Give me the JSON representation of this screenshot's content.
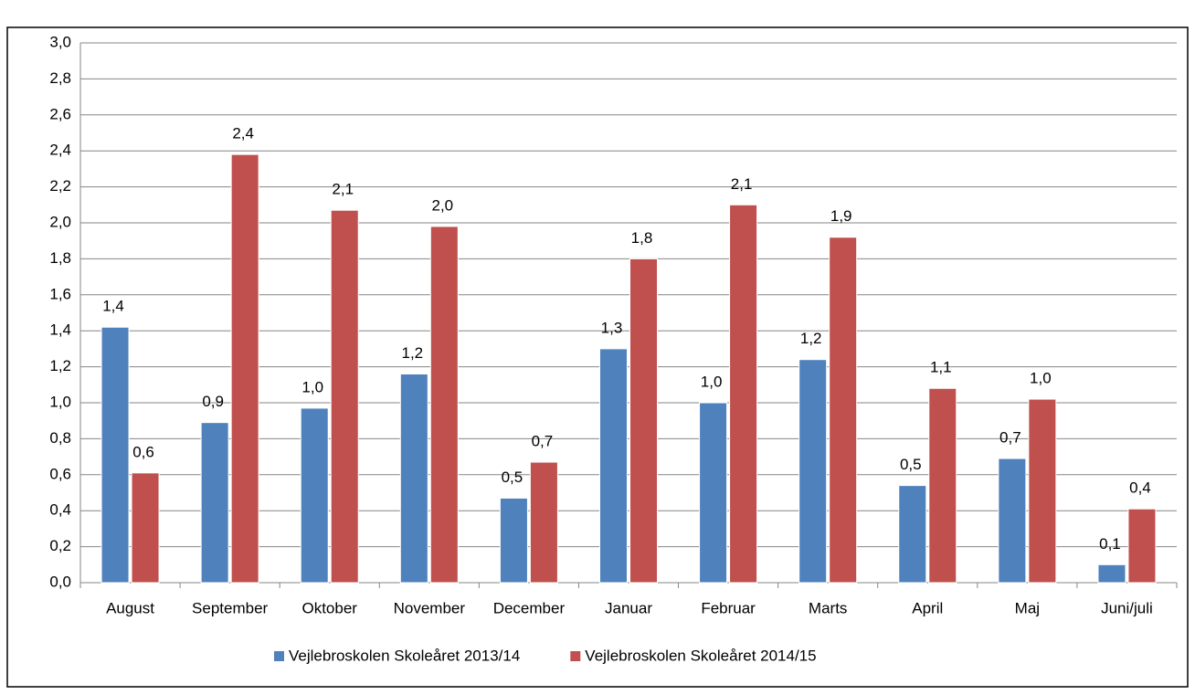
{
  "chart_data": {
    "type": "bar",
    "categories": [
      "August",
      "September",
      "Oktober",
      "November",
      "December",
      "Januar",
      "Februar",
      "Marts",
      "April",
      "Maj",
      "Juni/juli"
    ],
    "series": [
      {
        "name": "Vejlebroskolen Skoleåret 2013/14",
        "color": "#4f81bd",
        "values": [
          1.42,
          0.89,
          0.97,
          1.16,
          0.47,
          1.3,
          1.0,
          1.24,
          0.54,
          0.69,
          0.1
        ],
        "value_labels": [
          "1,4",
          "0,9",
          "1,0",
          "1,2",
          "0,5",
          "1,3",
          "1,0",
          "1,2",
          "0,5",
          "0,7",
          "0,1"
        ]
      },
      {
        "name": "Vejlebroskolen Skoleåret 2014/15",
        "color": "#c0504d",
        "values": [
          0.61,
          2.38,
          2.07,
          1.98,
          0.67,
          1.8,
          2.1,
          1.92,
          1.08,
          1.02,
          0.41
        ],
        "value_labels": [
          "0,6",
          "2,4",
          "2,1",
          "2,0",
          "0,7",
          "1,8",
          "2,1",
          "1,9",
          "1,1",
          "1,0",
          "0,4"
        ]
      }
    ],
    "ylim": [
      0,
      3
    ],
    "yticks": [
      {
        "value": 0,
        "label": "0,0"
      },
      {
        "value": 0.2,
        "label": "0,2"
      },
      {
        "value": 0.4,
        "label": "0,4"
      },
      {
        "value": 0.6,
        "label": "0,6"
      },
      {
        "value": 0.8,
        "label": "0,8"
      },
      {
        "value": 1,
        "label": "1,0"
      },
      {
        "value": 1.2,
        "label": "1,2"
      },
      {
        "value": 1.4,
        "label": "1,4"
      },
      {
        "value": 1.6,
        "label": "1,6"
      },
      {
        "value": 1.8,
        "label": "1,8"
      },
      {
        "value": 2,
        "label": "2,0"
      },
      {
        "value": 2.2,
        "label": "2,2"
      },
      {
        "value": 2.4,
        "label": "2,4"
      },
      {
        "value": 2.6,
        "label": "2,6"
      },
      {
        "value": 2.8,
        "label": "2,8"
      },
      {
        "value": 3,
        "label": "3,0"
      }
    ],
    "grid": true,
    "legend": "bottom"
  }
}
